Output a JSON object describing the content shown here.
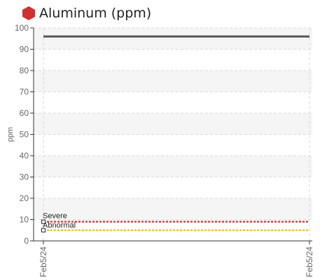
{
  "chart": {
    "title": "Aluminum (ppm)",
    "status_icon": "hexagon-alert-icon",
    "status_color": "#d32f2f"
  },
  "chart_data": {
    "type": "line",
    "title": "Aluminum (ppm)",
    "ylabel": "ppm",
    "xlabel": "",
    "ylim": [
      0,
      100
    ],
    "yticks": [
      0,
      10,
      20,
      30,
      40,
      50,
      60,
      70,
      80,
      90,
      100
    ],
    "x_ticks": [
      "Feb5/24",
      "Feb5/24"
    ],
    "grid": true,
    "series": [
      {
        "name": "",
        "color": "#555555",
        "values": [
          96,
          96
        ]
      }
    ],
    "thresholds": [
      {
        "name": "Severe",
        "value": 9,
        "color": "#e53935"
      },
      {
        "name": "Abnormal",
        "value": 5,
        "color": "#f5c518"
      }
    ]
  }
}
